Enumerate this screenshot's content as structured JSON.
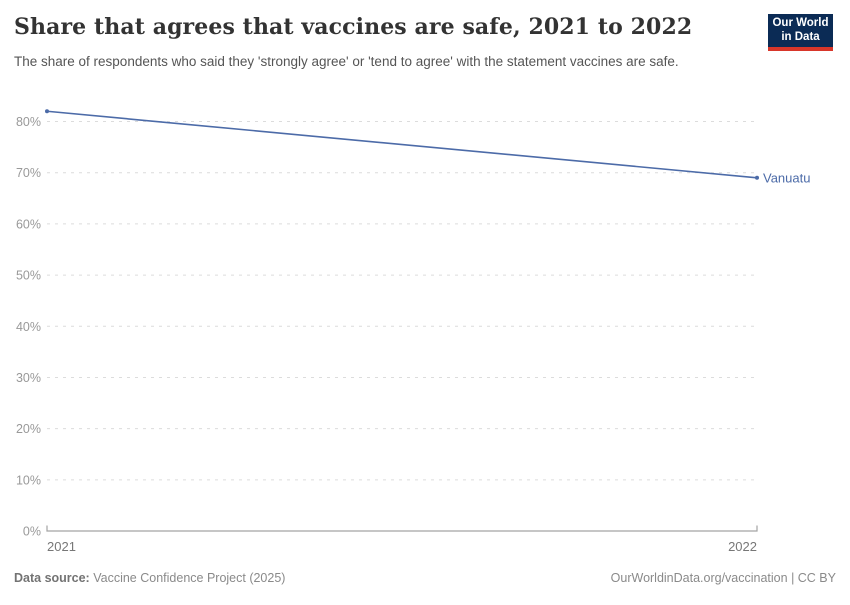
{
  "header": {
    "title": "Share that agrees that vaccines are safe, 2021 to 2022",
    "subtitle": "The share of respondents who said they 'strongly agree' or 'tend to agree' with the statement vaccines are safe.",
    "logo": {
      "line1": "Our World",
      "line2": "in Data"
    }
  },
  "chart_data": {
    "type": "line",
    "title": "Share that agrees that vaccines are safe, 2021 to 2022",
    "x": [
      2021,
      2022
    ],
    "xtick_labels": [
      "2021",
      "2022"
    ],
    "series": [
      {
        "name": "Vanuatu",
        "values": [
          82,
          69
        ]
      }
    ],
    "xlabel": "",
    "ylabel": "",
    "ylim": [
      0,
      80
    ],
    "ytick_step": 10,
    "ytick_suffix": "%",
    "grid": "horizontal-dashed",
    "legend": "end-of-line-label"
  },
  "footer": {
    "source_label": "Data source:",
    "source_value": "Vaccine Confidence Project (2025)",
    "credit": "OurWorldinData.org/vaccination | CC BY"
  },
  "colors": {
    "series_blue": "#4c6ba8",
    "gridline": "#dcdcdc",
    "axis_line": "#a3a3a3",
    "ytick_text": "#999999",
    "xtick_text": "#777777",
    "logo_bg": "#0b2b55",
    "logo_stripe": "#d8362a"
  }
}
